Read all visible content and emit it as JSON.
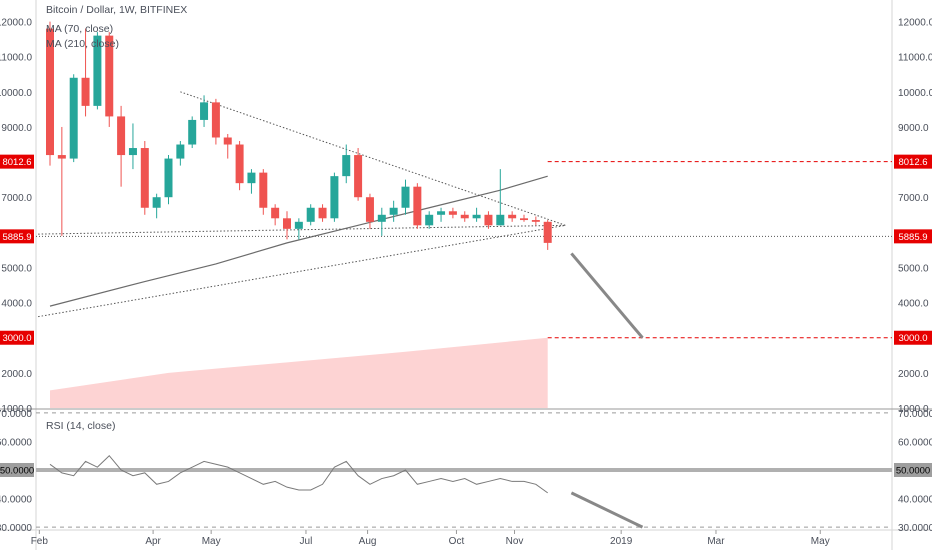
{
  "chart_data": [
    {
      "type": "candlestick",
      "title": "Bitcoin / Dollar, 1W, BITFINEX",
      "indicators": [
        "MA (70, close)",
        "MA (210, close)"
      ],
      "y_ticks": [
        1000,
        2000,
        3000,
        4000,
        5000,
        6000,
        7000,
        8000,
        9000,
        10000,
        11000,
        12000
      ],
      "y_range": [
        1000,
        12500
      ],
      "x_labels": [
        "Feb",
        "Apr",
        "May",
        "Jul",
        "Aug",
        "Oct",
        "Nov",
        "2019",
        "Mar",
        "May"
      ],
      "highlighted_levels": [
        {
          "value": 8012.6,
          "label": "8012.6"
        },
        {
          "value": 5885.9,
          "label": "5885.9"
        },
        {
          "value": 3000.0,
          "label": "3000.0"
        }
      ],
      "candles": [
        {
          "o": 11800,
          "h": 12000,
          "l": 7900,
          "c": 8200
        },
        {
          "o": 8200,
          "h": 9000,
          "l": 5900,
          "c": 8100
        },
        {
          "o": 8100,
          "h": 10500,
          "l": 8000,
          "c": 10400
        },
        {
          "o": 10400,
          "h": 11800,
          "l": 9300,
          "c": 9600
        },
        {
          "o": 9600,
          "h": 11700,
          "l": 9500,
          "c": 11600
        },
        {
          "o": 11600,
          "h": 11700,
          "l": 9000,
          "c": 9300
        },
        {
          "o": 9300,
          "h": 9600,
          "l": 7300,
          "c": 8200
        },
        {
          "o": 8200,
          "h": 9100,
          "l": 7800,
          "c": 8400
        },
        {
          "o": 8400,
          "h": 8600,
          "l": 6500,
          "c": 6700
        },
        {
          "o": 6700,
          "h": 7100,
          "l": 6400,
          "c": 7000
        },
        {
          "o": 7000,
          "h": 8200,
          "l": 6800,
          "c": 8100
        },
        {
          "o": 8100,
          "h": 8600,
          "l": 7900,
          "c": 8500
        },
        {
          "o": 8500,
          "h": 9300,
          "l": 8400,
          "c": 9200
        },
        {
          "o": 9200,
          "h": 9900,
          "l": 9000,
          "c": 9700
        },
        {
          "o": 9700,
          "h": 9800,
          "l": 8500,
          "c": 8700
        },
        {
          "o": 8700,
          "h": 8800,
          "l": 8100,
          "c": 8500
        },
        {
          "o": 8500,
          "h": 8600,
          "l": 7200,
          "c": 7400
        },
        {
          "o": 7400,
          "h": 7800,
          "l": 7100,
          "c": 7700
        },
        {
          "o": 7700,
          "h": 7800,
          "l": 6500,
          "c": 6700
        },
        {
          "o": 6700,
          "h": 6800,
          "l": 6200,
          "c": 6400
        },
        {
          "o": 6400,
          "h": 6600,
          "l": 5800,
          "c": 6100
        },
        {
          "o": 6100,
          "h": 6400,
          "l": 5800,
          "c": 6300
        },
        {
          "o": 6300,
          "h": 6800,
          "l": 6200,
          "c": 6700
        },
        {
          "o": 6700,
          "h": 6800,
          "l": 6300,
          "c": 6400
        },
        {
          "o": 6400,
          "h": 7700,
          "l": 6300,
          "c": 7600
        },
        {
          "o": 7600,
          "h": 8500,
          "l": 7400,
          "c": 8200
        },
        {
          "o": 8200,
          "h": 8400,
          "l": 6900,
          "c": 7000
        },
        {
          "o": 7000,
          "h": 7100,
          "l": 6100,
          "c": 6300
        },
        {
          "o": 6300,
          "h": 6700,
          "l": 5900,
          "c": 6500
        },
        {
          "o": 6500,
          "h": 6900,
          "l": 6300,
          "c": 6700
        },
        {
          "o": 6700,
          "h": 7500,
          "l": 6500,
          "c": 7300
        },
        {
          "o": 7300,
          "h": 7400,
          "l": 6100,
          "c": 6200
        },
        {
          "o": 6200,
          "h": 6600,
          "l": 6100,
          "c": 6500
        },
        {
          "o": 6500,
          "h": 6700,
          "l": 6300,
          "c": 6600
        },
        {
          "o": 6600,
          "h": 6700,
          "l": 6400,
          "c": 6500
        },
        {
          "o": 6500,
          "h": 6600,
          "l": 6300,
          "c": 6400
        },
        {
          "o": 6400,
          "h": 6700,
          "l": 6300,
          "c": 6500
        },
        {
          "o": 6500,
          "h": 6600,
          "l": 6100,
          "c": 6200
        },
        {
          "o": 6200,
          "h": 7800,
          "l": 6200,
          "c": 6500
        },
        {
          "o": 6500,
          "h": 6600,
          "l": 6300,
          "c": 6400
        },
        {
          "o": 6400,
          "h": 6500,
          "l": 6300,
          "c": 6350
        },
        {
          "o": 6350,
          "h": 6450,
          "l": 6200,
          "c": 6300
        },
        {
          "o": 6300,
          "h": 6350,
          "l": 5500,
          "c": 5700
        }
      ],
      "ma70": [
        {
          "x": 0,
          "y": 3900
        },
        {
          "x": 8,
          "y": 4600
        },
        {
          "x": 14,
          "y": 5100
        },
        {
          "x": 20,
          "y": 5700
        },
        {
          "x": 26,
          "y": 6200
        },
        {
          "x": 32,
          "y": 6700
        },
        {
          "x": 38,
          "y": 7200
        },
        {
          "x": 42,
          "y": 7600
        }
      ],
      "ma210_area": [
        {
          "x": 0,
          "y": 1500
        },
        {
          "x": 10,
          "y": 2000
        },
        {
          "x": 20,
          "y": 2300
        },
        {
          "x": 30,
          "y": 2600
        },
        {
          "x": 42,
          "y": 3000
        }
      ],
      "trendlines": [
        {
          "style": "dotted",
          "from": {
            "x": 11,
            "y": 10000
          },
          "to": {
            "x": 43.5,
            "y": 6200
          }
        },
        {
          "style": "dotted",
          "from": {
            "x": -1,
            "y": 5950
          },
          "to": {
            "x": 43.5,
            "y": 6200
          }
        },
        {
          "style": "dotted",
          "from": {
            "x": -1,
            "y": 3600
          },
          "to": {
            "x": 43.5,
            "y": 6200
          }
        },
        {
          "style": "solid-projection",
          "from": {
            "x": 44,
            "y": 5400
          },
          "to": {
            "x": 50,
            "y": 3000
          }
        }
      ]
    },
    {
      "type": "line",
      "title": "RSI (14, close)",
      "y_ticks": [
        30,
        40,
        50,
        60,
        70
      ],
      "y_range": [
        29,
        71
      ],
      "highlighted_level": {
        "value": 50,
        "label": "50.0000"
      },
      "values": [
        52,
        49,
        48,
        53,
        51,
        55,
        50,
        48,
        49,
        45,
        46,
        49,
        51,
        53,
        52,
        51,
        49,
        47,
        45,
        46,
        44,
        43,
        43,
        45,
        51,
        53,
        48,
        45,
        47,
        48,
        50,
        45,
        46,
        47,
        46,
        47,
        45,
        46,
        47,
        46,
        46,
        45,
        42
      ],
      "projection": {
        "from": {
          "x": 44,
          "y": 42
        },
        "to": {
          "x": 50,
          "y": 30
        }
      }
    }
  ],
  "labels": {
    "price_title": "Bitcoin / Dollar, 1W, BITFINEX",
    "ma70": "MA (70, close)",
    "ma210": "MA (210, close)",
    "rsi_title": "RSI (14, close)"
  },
  "colors": {
    "up": "#26a69a",
    "down": "#ef5350",
    "level": "#e60000",
    "ma": "#6b6b6b",
    "ma_fill": "#fdd3d3",
    "trendline": "#555555",
    "projection": "#888888",
    "rsi": "#7a7a7a",
    "rsi_mid": "#b0b0b0",
    "axis_text": "#4a4f5a",
    "grid": "#e6e6e6"
  }
}
